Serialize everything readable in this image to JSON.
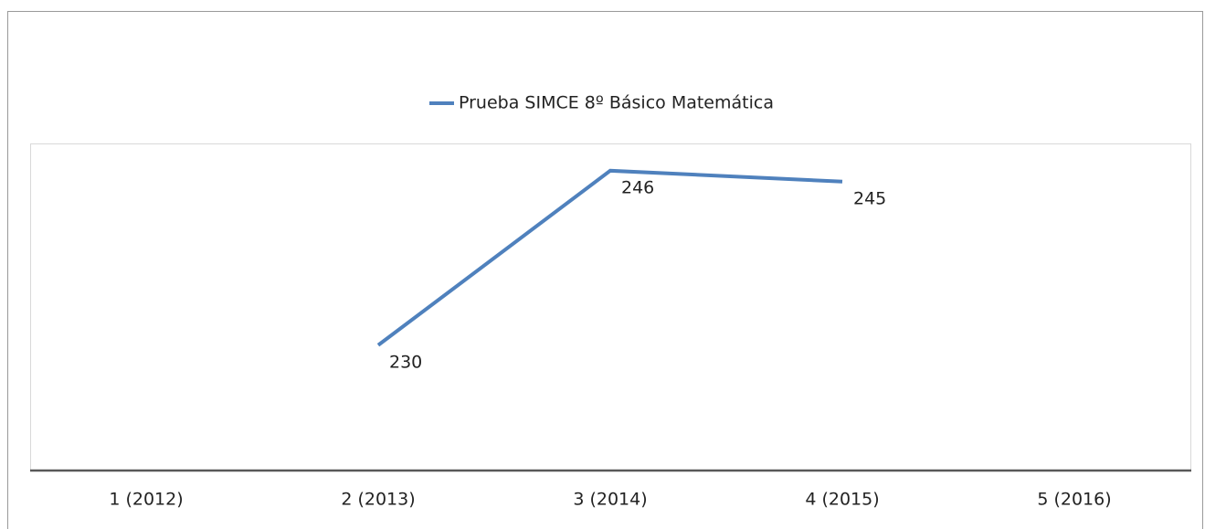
{
  "chart_data": {
    "type": "line",
    "categories": [
      "1 (2012)",
      "2 (2013)",
      "3 (2014)",
      "4 (2015)",
      "5 (2016)"
    ],
    "series": [
      {
        "name": "Prueba SIMCE 8º Básico Matemática",
        "color": "#4f81bd",
        "values": [
          null,
          230,
          246,
          245,
          null
        ]
      }
    ],
    "ylim": [
      218.5,
      248.5
    ],
    "legend": "top"
  }
}
